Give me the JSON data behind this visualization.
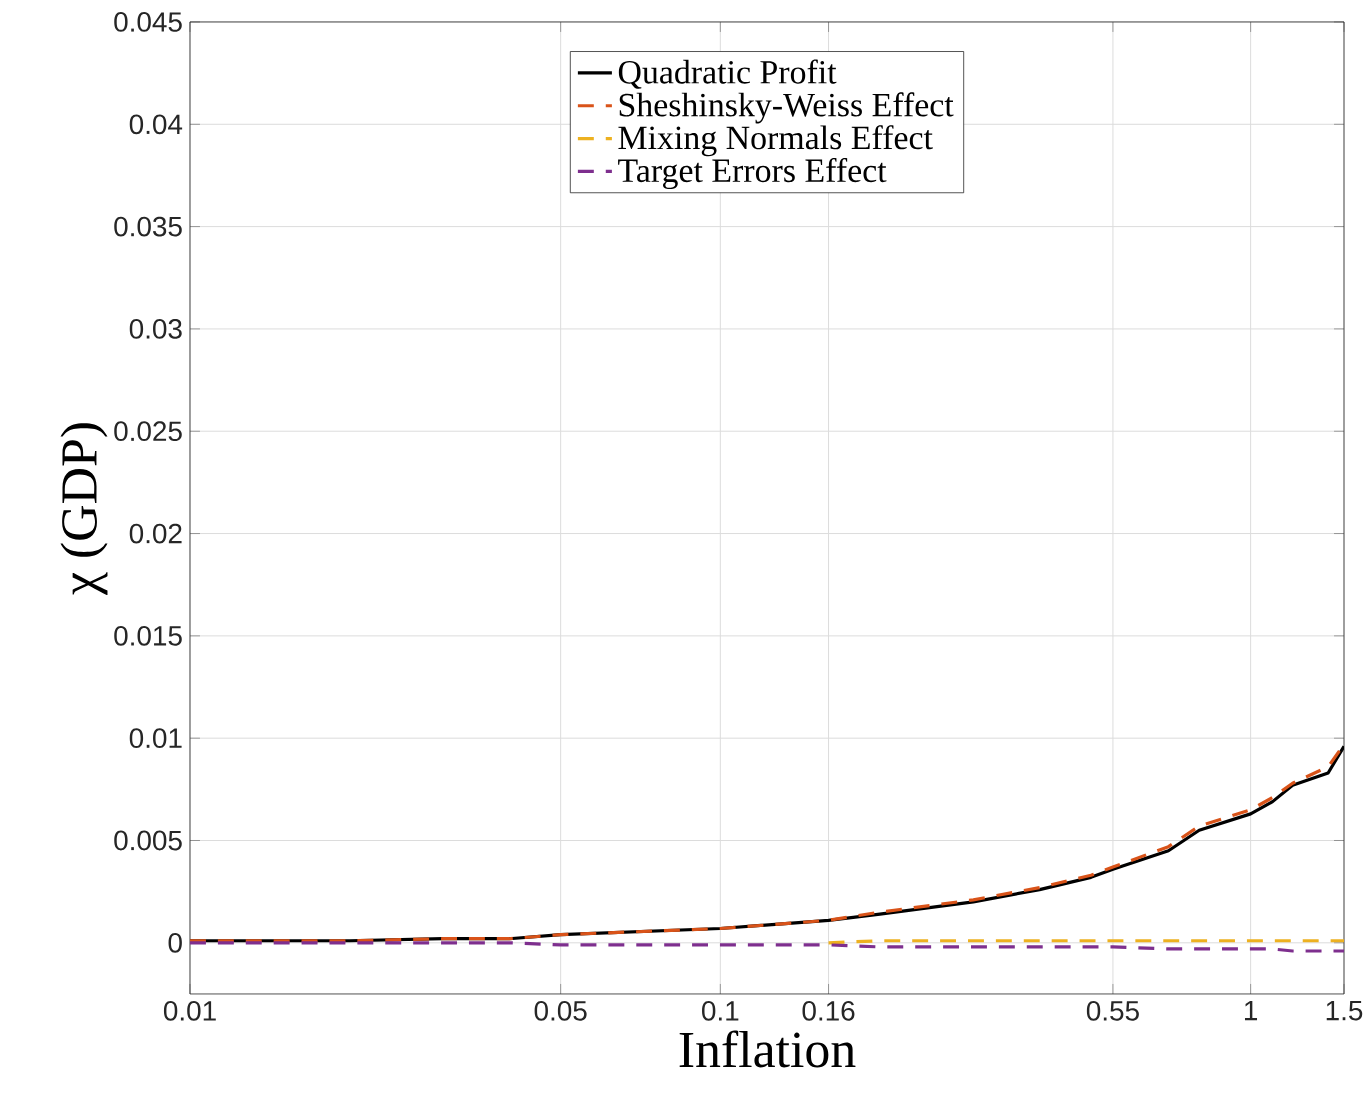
{
  "chart_data": {
    "type": "line",
    "xlabel": "Inflation",
    "ylabel": "χ (GDP)",
    "log": "x",
    "grid": true,
    "legend": "top",
    "marker": "none",
    "xlim": [
      0.01,
      1.5
    ],
    "ylim": [
      -0.0025,
      0.045
    ],
    "xticks": [
      0.01,
      0.05,
      0.1,
      0.16,
      0.55,
      1,
      1.5
    ],
    "yticks": [
      0,
      0.005,
      0.01,
      0.015,
      0.02,
      0.025,
      0.03,
      0.035,
      0.04,
      0.045
    ],
    "x": [
      0.01,
      0.02,
      0.03,
      0.04,
      0.05,
      0.1,
      0.16,
      0.2,
      0.3,
      0.4,
      0.5,
      0.55,
      0.7,
      0.8,
      1,
      1.1,
      1.2,
      1.4,
      1.5
    ],
    "series": [
      {
        "name": "Quadratic Profit",
        "color": "#000000",
        "line_style": "solid",
        "values": [
          0.0001,
          0.0001,
          0.0002,
          0.0002,
          0.0004,
          0.0007,
          0.0011,
          0.0014,
          0.002,
          0.0026,
          0.0032,
          0.0036,
          0.0045,
          0.0055,
          0.0063,
          0.0069,
          0.0077,
          0.0083,
          0.0096
        ]
      },
      {
        "name": "Sheshinsky-Weiss Effect",
        "color": "#d95319",
        "line_style": "dashed",
        "values": [
          0.0001,
          0.0001,
          0.0002,
          0.0002,
          0.0004,
          0.0007,
          0.0011,
          0.0015,
          0.0021,
          0.0027,
          0.0033,
          0.0037,
          0.0047,
          0.0057,
          0.0065,
          0.0071,
          0.0078,
          0.0086,
          0.0097
        ]
      },
      {
        "name": "Mixing Normals Effect",
        "color": "#edb120",
        "line_style": "dashed",
        "values": [
          null,
          null,
          null,
          null,
          null,
          null,
          0,
          0.0001,
          0.0001,
          0.0001,
          0.0001,
          0.0001,
          0.0001,
          0.0001,
          0.0001,
          0.0001,
          0.0001,
          0.0001,
          0.0001
        ]
      },
      {
        "name": "Target Errors Effect",
        "color": "#7e2f8e",
        "line_style": "dashed",
        "values": [
          0,
          0,
          0,
          0,
          -0.0001,
          -0.0001,
          -0.0001,
          -0.0002,
          -0.0002,
          -0.0002,
          -0.0002,
          -0.0002,
          -0.0003,
          -0.0003,
          -0.0003,
          -0.0003,
          -0.0004,
          -0.0004,
          -0.0004
        ]
      }
    ]
  }
}
